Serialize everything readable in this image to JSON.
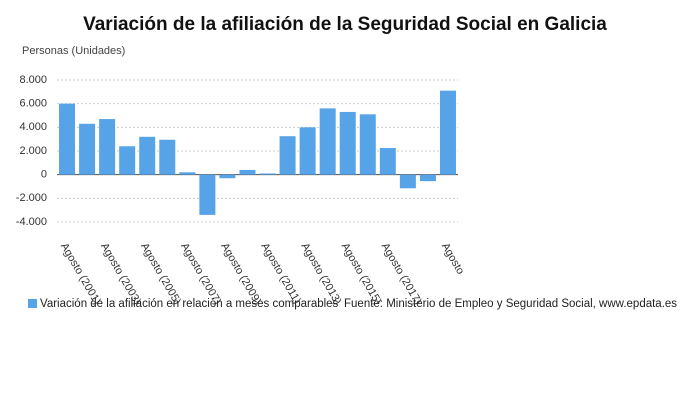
{
  "chart_data": {
    "type": "bar",
    "title": "Variación de la afiliación de la Seguridad Social en Galicia",
    "y_label": "Personas (Unidades)",
    "source": "Fuente: Ministerio de Empleo y Seguridad Social, www.epdata.es",
    "categories": [
      "Agosto (2001)",
      null,
      "Agosto (2003)",
      null,
      "Agosto (2005)",
      null,
      "Agosto (2007)",
      null,
      "Agosto (2009)",
      null,
      "Agosto (2011)",
      null,
      "Agosto (2013)",
      null,
      "Agosto (2015)",
      null,
      "Agosto (2017)",
      null,
      null,
      "Agosto"
    ],
    "series": [
      {
        "name": "Variación de la afiliación en relación a meses comparables",
        "color": "#56a3e8",
        "values": [
          6000,
          4300,
          4700,
          2400,
          3200,
          2950,
          200,
          -3400,
          -300,
          400,
          100,
          3250,
          4000,
          5600,
          5300,
          5100,
          2250,
          -1150,
          -550,
          7100
        ]
      }
    ],
    "ylim": [
      -4000,
      8000
    ],
    "yticks": [
      {
        "value": -4000,
        "label": "-4.000"
      },
      {
        "value": -2000,
        "label": "-2.000"
      },
      0,
      {
        "value": 2000,
        "label": "2.000"
      },
      {
        "value": 4000,
        "label": "4.000"
      },
      {
        "value": 6000,
        "label": "6.000"
      },
      {
        "value": 8000,
        "label": "8.000"
      }
    ],
    "grid": true
  }
}
